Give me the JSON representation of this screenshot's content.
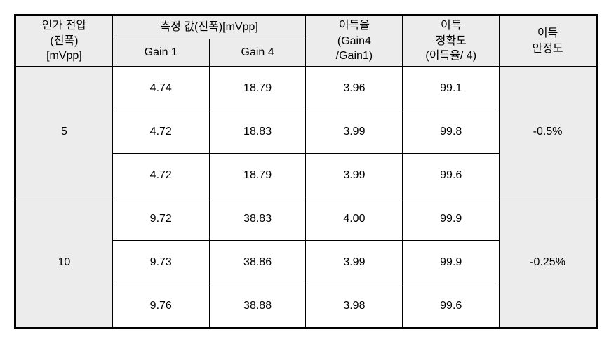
{
  "table": {
    "type": "table",
    "colors": {
      "header_bg": "#ececec",
      "border": "#000000",
      "text": "#000000",
      "body_bg": "#ffffff"
    },
    "fontsize": 16,
    "headers": {
      "voltage_l1": "인가 전압",
      "voltage_l2": "(진폭)",
      "voltage_l3": "[mVpp]",
      "measured": "측정 값(진폭)[mVpp]",
      "gain1": "Gain 1",
      "gain4": "Gain 4",
      "ratio_l1": "이득율",
      "ratio_l2": "(Gain4",
      "ratio_l3": "/Gain1)",
      "accuracy_l1": "이득",
      "accuracy_l2": "정확도",
      "accuracy_l3": "(이득율/ 4)",
      "stability_l1": "이득",
      "stability_l2": "안정도"
    },
    "groups": [
      {
        "voltage": "5",
        "stability": "-0.5%",
        "rows": [
          {
            "gain1": "4.74",
            "gain4": "18.79",
            "ratio": "3.96",
            "accuracy": "99.1"
          },
          {
            "gain1": "4.72",
            "gain4": "18.83",
            "ratio": "3.99",
            "accuracy": "99.8"
          },
          {
            "gain1": "4.72",
            "gain4": "18.79",
            "ratio": "3.99",
            "accuracy": "99.6"
          }
        ]
      },
      {
        "voltage": "10",
        "stability": "-0.25%",
        "rows": [
          {
            "gain1": "9.72",
            "gain4": "38.83",
            "ratio": "4.00",
            "accuracy": "99.9"
          },
          {
            "gain1": "9.73",
            "gain4": "38.86",
            "ratio": "3.99",
            "accuracy": "99.9"
          },
          {
            "gain1": "9.76",
            "gain4": "38.88",
            "ratio": "3.98",
            "accuracy": "99.6"
          }
        ]
      }
    ]
  }
}
